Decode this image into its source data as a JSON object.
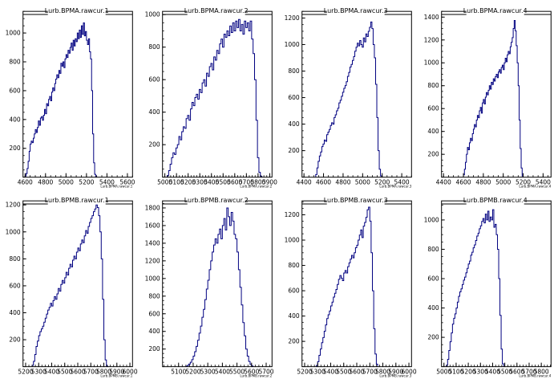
{
  "chart_data": [
    {
      "type": "bar",
      "title": "Lurb.BPMA.rawcur.1",
      "xlabel": "Lurb.BPMA.rawcur.1",
      "xlim": [
        4580,
        5650
      ],
      "ylim": [
        0,
        1150
      ],
      "xticks": [
        4600,
        4800,
        5000,
        5200,
        5400,
        5600
      ],
      "yticks": [
        200,
        400,
        600,
        800,
        1000
      ],
      "xtick_labels": [
        "4600",
        "4800",
        "5000",
        "5200",
        "5400",
        "5600"
      ],
      "ytick_labels": [
        "200",
        "400",
        "600",
        "800",
        "1000"
      ],
      "bins": {
        "start": 4600,
        "width": 10,
        "values": [
          8,
          25,
          60,
          110,
          180,
          230,
          250,
          240,
          270,
          300,
          330,
          310,
          345,
          390,
          360,
          410,
          420,
          395,
          430,
          470,
          440,
          510,
          495,
          540,
          560,
          530,
          590,
          620,
          600,
          650,
          680,
          710,
          690,
          740,
          720,
          790,
          770,
          800,
          760,
          820,
          850,
          830,
          880,
          860,
          900,
          930,
          880,
          950,
          910,
          960,
          940,
          1000,
          960,
          1020,
          970,
          1050,
          990,
          1070,
          980,
          1010,
          950,
          920,
          960,
          870,
          820,
          600,
          300,
          100,
          20,
          3
        ]
      }
    },
    {
      "type": "bar",
      "title": "Lurb.BPMA.rawcur.2",
      "xlabel": "Lurb.BPMA.rawcur.2",
      "xlim": [
        4980,
        5920
      ],
      "ylim": [
        0,
        1020
      ],
      "xticks": [
        5000,
        5100,
        5200,
        5300,
        5400,
        5500,
        5600,
        5700,
        5800,
        5900
      ],
      "yticks": [
        200,
        400,
        600,
        800,
        1000
      ],
      "xtick_labels": [
        "5000",
        "5100",
        "5200",
        "5300",
        "5400",
        "5500",
        "5600",
        "5700",
        "5800",
        "5900"
      ],
      "ytick_labels": [
        "200",
        "400",
        "600",
        "800",
        "1000"
      ],
      "bins": {
        "start": 5020,
        "width": 12.5,
        "values": [
          10,
          40,
          80,
          120,
          150,
          140,
          180,
          200,
          250,
          230,
          280,
          310,
          300,
          360,
          380,
          350,
          420,
          460,
          440,
          490,
          510,
          480,
          540,
          520,
          580,
          600,
          560,
          640,
          620,
          680,
          700,
          660,
          740,
          720,
          780,
          760,
          820,
          850,
          800,
          880,
          860,
          900,
          870,
          930,
          890,
          950,
          900,
          960,
          920,
          970,
          900,
          940,
          880,
          960,
          920,
          950,
          900,
          960,
          850,
          760,
          600,
          350,
          120,
          30,
          5
        ]
      }
    },
    {
      "type": "bar",
      "title": "Lurb.BPMA.rawcur.3",
      "xlabel": "Lurb.BPMA.rawcur.3",
      "xlim": [
        4380,
        5500
      ],
      "ylim": [
        0,
        1250
      ],
      "xticks": [
        4400,
        4600,
        4800,
        5000,
        5200,
        5400
      ],
      "yticks": [
        200,
        400,
        600,
        800,
        1000,
        1200
      ],
      "xtick_labels": [
        "4400",
        "4600",
        "4800",
        "5000",
        "5200",
        "5400"
      ],
      "ytick_labels": [
        "200",
        "400",
        "600",
        "800",
        "1000",
        "1200"
      ],
      "bins": {
        "start": 4520,
        "width": 12.5,
        "values": [
          20,
          70,
          120,
          160,
          190,
          230,
          250,
          280,
          270,
          320,
          340,
          360,
          390,
          410,
          400,
          450,
          470,
          500,
          520,
          560,
          580,
          610,
          640,
          670,
          690,
          720,
          760,
          790,
          830,
          850,
          880,
          910,
          950,
          980,
          1010,
          990,
          1030,
          1000,
          980,
          1050,
          1020,
          1080,
          1060,
          1100,
          1130,
          1170,
          1120,
          1000,
          900,
          700,
          450,
          200,
          60,
          10
        ]
      }
    },
    {
      "type": "bar",
      "title": "Lurb.BPMA.rawcur.4",
      "xlabel": "Lurb.BPMA.rawcur.4",
      "xlim": [
        4380,
        5480
      ],
      "ylim": [
        0,
        1450
      ],
      "xticks": [
        4400,
        4600,
        4800,
        5000,
        5200,
        5400
      ],
      "yticks": [
        200,
        400,
        600,
        800,
        1000,
        1200,
        1400
      ],
      "xtick_labels": [
        "4400",
        "4600",
        "4800",
        "5000",
        "5200",
        "5400"
      ],
      "ytick_labels": [
        "200",
        "400",
        "600",
        "800",
        "1000",
        "1200",
        "1400"
      ],
      "bins": {
        "start": 4600,
        "width": 10,
        "values": [
          20,
          70,
          130,
          200,
          260,
          240,
          300,
          340,
          320,
          380,
          420,
          460,
          440,
          500,
          540,
          520,
          580,
          610,
          560,
          650,
          680,
          640,
          700,
          740,
          720,
          760,
          800,
          770,
          830,
          810,
          860,
          840,
          880,
          900,
          870,
          920,
          940,
          910,
          960,
          980,
          940,
          1000,
          1040,
          1010,
          1070,
          1100,
          1080,
          1140,
          1180,
          1220,
          1300,
          1370,
          1280,
          1150,
          1000,
          800,
          500,
          250,
          80,
          10
        ]
      }
    },
    {
      "type": "bar",
      "title": "Lurb.BPMB.rawcur.1",
      "xlabel": "Lurb.BPMB.rawcur.1",
      "xlim": [
        5180,
        6020
      ],
      "ylim": [
        0,
        1230
      ],
      "xticks": [
        5200,
        5300,
        5400,
        5500,
        5600,
        5700,
        5800,
        5900,
        6000
      ],
      "yticks": [
        200,
        400,
        600,
        800,
        1000,
        1200
      ],
      "xtick_labels": [
        "5200",
        "5300",
        "5400",
        "5500",
        "5600",
        "5700",
        "5800",
        "5900",
        "6000"
      ],
      "ytick_labels": [
        "200",
        "400",
        "600",
        "800",
        "1000",
        "1200"
      ],
      "bins": {
        "start": 5250,
        "width": 10,
        "values": [
          10,
          40,
          90,
          150,
          190,
          230,
          260,
          280,
          300,
          330,
          360,
          390,
          420,
          440,
          470,
          450,
          490,
          520,
          500,
          540,
          580,
          560,
          610,
          640,
          620,
          660,
          700,
          680,
          730,
          760,
          740,
          790,
          820,
          800,
          850,
          880,
          860,
          910,
          940,
          920,
          970,
          1010,
          990,
          1040,
          1070,
          1100,
          1120,
          1150,
          1170,
          1200,
          1180,
          1120,
          1000,
          800,
          500,
          200,
          50,
          5
        ]
      }
    },
    {
      "type": "bar",
      "title": "Lurb.BPMB.rawcur.2",
      "xlabel": "Lurb.BPMB.rawcur.2",
      "xlim": [
        4990,
        5740
      ],
      "ylim": [
        0,
        1880
      ],
      "xticks": [
        5100,
        5200,
        5300,
        5400,
        5500,
        5600,
        5700
      ],
      "yticks": [
        200,
        400,
        600,
        800,
        1000,
        1200,
        1400,
        1600,
        1800
      ],
      "xtick_labels": [
        "5100",
        "5200",
        "5300",
        "5400",
        "5500",
        "5600",
        "5700"
      ],
      "ytick_labels": [
        "200",
        "400",
        "600",
        "800",
        "1000",
        "1200",
        "1400",
        "1600",
        "1800"
      ],
      "bins": {
        "start": 5150,
        "width": 10,
        "values": [
          5,
          15,
          30,
          50,
          80,
          120,
          170,
          230,
          300,
          380,
          460,
          560,
          650,
          760,
          880,
          980,
          1100,
          1200,
          1300,
          1380,
          1450,
          1400,
          1500,
          1560,
          1450,
          1600,
          1680,
          1550,
          1800,
          1700,
          1600,
          1750,
          1650,
          1500,
          1450,
          1300,
          1100,
          900,
          700,
          500,
          350,
          200,
          120,
          60,
          25,
          8
        ]
      }
    },
    {
      "type": "bar",
      "title": "Lurb.BPMB.rawcur.3",
      "xlabel": "Lurb.BPMB.rawcur.3",
      "xlim": [
        5180,
        6020
      ],
      "ylim": [
        0,
        1310
      ],
      "xticks": [
        5200,
        5300,
        5400,
        5500,
        5600,
        5700,
        5800,
        5900,
        6000
      ],
      "yticks": [
        200,
        400,
        600,
        800,
        1000,
        1200
      ],
      "xtick_labels": [
        "5200",
        "5300",
        "5400",
        "5500",
        "5600",
        "5700",
        "5800",
        "5900",
        "6000"
      ],
      "ytick_labels": [
        "200",
        "400",
        "600",
        "800",
        "1000",
        "1200"
      ],
      "bins": {
        "start": 5290,
        "width": 10,
        "values": [
          10,
          40,
          90,
          140,
          190,
          230,
          280,
          330,
          380,
          410,
          440,
          480,
          510,
          550,
          580,
          610,
          650,
          690,
          720,
          700,
          680,
          740,
          760,
          740,
          790,
          820,
          850,
          880,
          860,
          900,
          940,
          960,
          1000,
          1040,
          1080,
          1020,
          1110,
          1140,
          1180,
          1240,
          1260,
          1150,
          900,
          600,
          300,
          100,
          20
        ]
      }
    },
    {
      "type": "bar",
      "title": "Lurb.BPMB.rawcur.4",
      "xlabel": "Lurb.BPMB.rawcur.4",
      "xlim": [
        4980,
        5880
      ],
      "ylim": [
        0,
        1130
      ],
      "xticks": [
        5000,
        5100,
        5200,
        5300,
        5400,
        5500,
        5600,
        5700,
        5800
      ],
      "yticks": [
        200,
        400,
        600,
        800,
        1000
      ],
      "xtick_labels": [
        "5000",
        "5100",
        "5200",
        "5300",
        "5400",
        "5500",
        "5600",
        "5700",
        "5800"
      ],
      "ytick_labels": [
        "200",
        "400",
        "600",
        "800",
        "1000"
      ],
      "bins": {
        "start": 5020,
        "width": 10,
        "values": [
          10,
          50,
          110,
          170,
          230,
          290,
          330,
          360,
          400,
          440,
          480,
          510,
          530,
          560,
          590,
          610,
          640,
          670,
          700,
          720,
          760,
          780,
          810,
          830,
          860,
          890,
          910,
          940,
          960,
          990,
          1010,
          980,
          1040,
          1000,
          1060,
          990,
          1020,
          1000,
          1070,
          950,
          970,
          900,
          800,
          600,
          350,
          120,
          20
        ]
      }
    }
  ]
}
